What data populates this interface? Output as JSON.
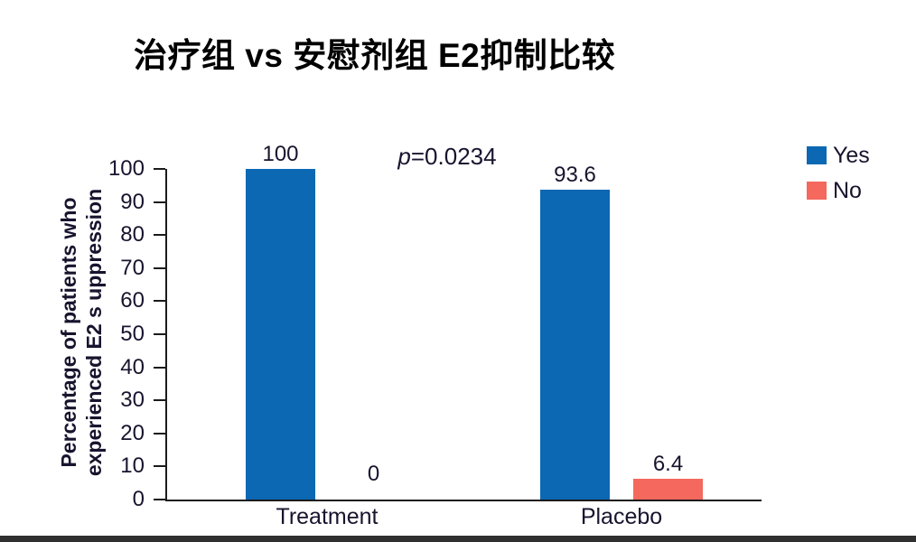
{
  "title": "治疗组 vs 安慰剂组 E2抑制比较",
  "annotation": {
    "p_symbol": "p",
    "p_rest": "=0.0234"
  },
  "legend": {
    "items": [
      {
        "label": "Yes",
        "color": "#0c68b3"
      },
      {
        "label": "No",
        "color": "#f4685e"
      }
    ]
  },
  "colors": {
    "bar_yes": "#0c68b3",
    "bar_no": "#f4685e",
    "text": "#18142e",
    "axis": "#1b1b1b",
    "background": "#ffffff",
    "bottom_strip": "#2f2f2f"
  },
  "chart_data": {
    "type": "bar",
    "title": "治疗组 vs 安慰剂组 E2抑制比较",
    "categories": [
      "Treatment",
      "Placebo"
    ],
    "series": [
      {
        "name": "Yes",
        "color": "#0c68b3",
        "values": [
          100,
          93.6
        ]
      },
      {
        "name": "No",
        "color": "#f4685e",
        "values": [
          0,
          6.4
        ]
      }
    ],
    "value_labels": [
      [
        "100",
        "93.6"
      ],
      [
        "0",
        "6.4"
      ]
    ],
    "annotation": "p=0.0234",
    "ylabel_lines": [
      "Percentage of patients who",
      "experienced E2 s uppression"
    ],
    "xlabel": "",
    "ylim": [
      0,
      100
    ],
    "ytick_step": 10,
    "grid": false,
    "legend_position": "upper right"
  }
}
